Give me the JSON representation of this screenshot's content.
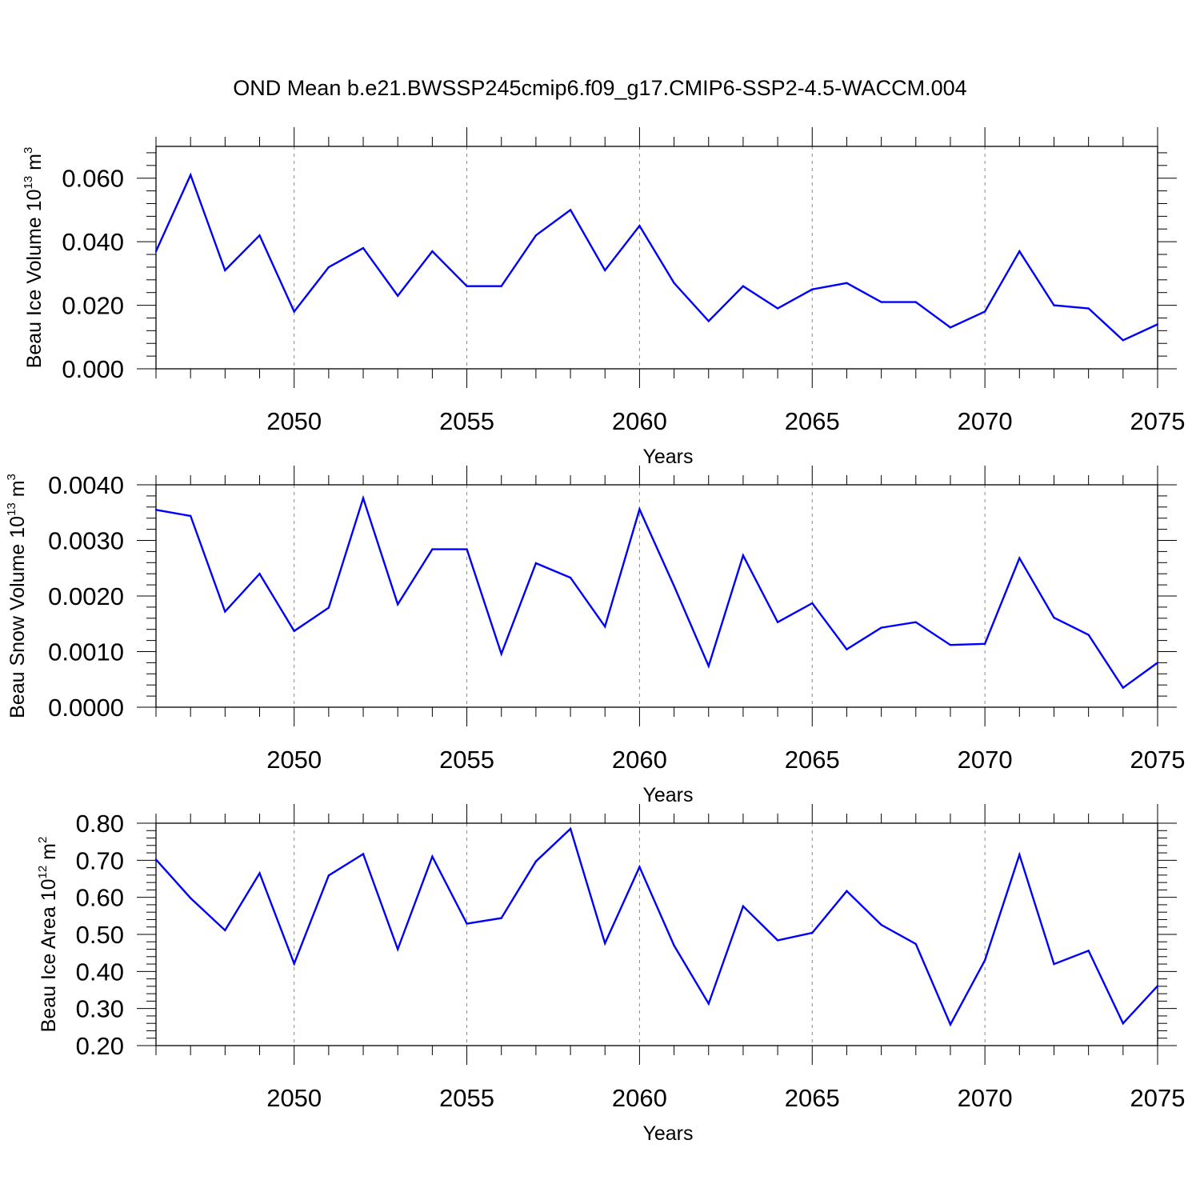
{
  "title": "OND Mean b.e21.BWSSP245cmip6.f09_g17.CMIP6-SSP2-4.5-WACCM.004",
  "colors": {
    "line": "#0000ff",
    "axis": "#000000",
    "grid": "#888888"
  },
  "chart_data": [
    {
      "type": "line",
      "ylabel": {
        "text": "Beau Ice Volume 10",
        "exp": "13",
        "unit": " m",
        "unit_exp": "3"
      },
      "xlabel": "Years",
      "xlim": [
        2046,
        2075
      ],
      "ylim": [
        0.0,
        0.07
      ],
      "yticks": [
        0.0,
        0.02,
        0.04,
        0.06
      ],
      "ytick_labels": [
        "0.000",
        "0.020",
        "0.040",
        "0.060"
      ],
      "xticks": [
        2050,
        2055,
        2060,
        2065,
        2070,
        2075
      ],
      "xtick_labels": [
        "2050",
        "2055",
        "2060",
        "2065",
        "2070",
        "2075"
      ],
      "grid": "vertical dashed at major x ticks",
      "x": [
        2046,
        2047,
        2048,
        2049,
        2050,
        2051,
        2052,
        2053,
        2054,
        2055,
        2056,
        2057,
        2058,
        2059,
        2060,
        2061,
        2062,
        2063,
        2064,
        2065,
        2066,
        2067,
        2068,
        2069,
        2070,
        2071,
        2072,
        2073,
        2074,
        2075
      ],
      "values": [
        0.037,
        0.061,
        0.031,
        0.042,
        0.018,
        0.032,
        0.038,
        0.023,
        0.037,
        0.026,
        0.026,
        0.042,
        0.05,
        0.031,
        0.045,
        0.027,
        0.015,
        0.026,
        0.019,
        0.025,
        0.027,
        0.021,
        0.021,
        0.013,
        0.018,
        0.037,
        0.02,
        0.019,
        0.009,
        0.014
      ]
    },
    {
      "type": "line",
      "ylabel": {
        "text": "Beau Snow Volume 10",
        "exp": "13",
        "unit": " m",
        "unit_exp": "3"
      },
      "xlabel": "Years",
      "xlim": [
        2046,
        2075
      ],
      "ylim": [
        0.0,
        0.004
      ],
      "yticks": [
        0.0,
        0.001,
        0.002,
        0.003,
        0.004
      ],
      "ytick_labels": [
        "0.0000",
        "0.0010",
        "0.0020",
        "0.0030",
        "0.0040"
      ],
      "xticks": [
        2050,
        2055,
        2060,
        2065,
        2070,
        2075
      ],
      "xtick_labels": [
        "2050",
        "2055",
        "2060",
        "2065",
        "2070",
        "2075"
      ],
      "grid": "vertical dashed at major x ticks",
      "x": [
        2046,
        2047,
        2048,
        2049,
        2050,
        2051,
        2052,
        2053,
        2054,
        2055,
        2056,
        2057,
        2058,
        2059,
        2060,
        2061,
        2062,
        2063,
        2064,
        2065,
        2066,
        2067,
        2068,
        2069,
        2070,
        2071,
        2072,
        2073,
        2074,
        2075
      ],
      "values": [
        0.00355,
        0.00344,
        0.00172,
        0.0024,
        0.00137,
        0.00179,
        0.00376,
        0.00185,
        0.00284,
        0.00284,
        0.00096,
        0.00259,
        0.00233,
        0.00145,
        0.00356,
        0.00218,
        0.00074,
        0.00273,
        0.00153,
        0.00187,
        0.00104,
        0.00143,
        0.00153,
        0.00112,
        0.00114,
        0.00268,
        0.00161,
        0.0013,
        0.00035,
        0.0008
      ]
    },
    {
      "type": "line",
      "ylabel": {
        "text": "Beau Ice Area 10",
        "exp": "12",
        "unit": " m",
        "unit_exp": "2"
      },
      "xlabel": "Years",
      "xlim": [
        2046,
        2075
      ],
      "ylim": [
        0.2,
        0.8
      ],
      "yticks": [
        0.2,
        0.3,
        0.4,
        0.5,
        0.6,
        0.7,
        0.8
      ],
      "ytick_labels": [
        "0.20",
        "0.30",
        "0.40",
        "0.50",
        "0.60",
        "0.70",
        "0.80"
      ],
      "xticks": [
        2050,
        2055,
        2060,
        2065,
        2070,
        2075
      ],
      "xtick_labels": [
        "2050",
        "2055",
        "2060",
        "2065",
        "2070",
        "2075"
      ],
      "grid": "vertical dashed at major x ticks",
      "x": [
        2046,
        2047,
        2048,
        2049,
        2050,
        2051,
        2052,
        2053,
        2054,
        2055,
        2056,
        2057,
        2058,
        2059,
        2060,
        2061,
        2062,
        2063,
        2064,
        2065,
        2066,
        2067,
        2068,
        2069,
        2070,
        2071,
        2072,
        2073,
        2074,
        2075
      ],
      "values": [
        0.702,
        0.598,
        0.511,
        0.665,
        0.421,
        0.659,
        0.717,
        0.46,
        0.71,
        0.529,
        0.544,
        0.697,
        0.785,
        0.476,
        0.682,
        0.47,
        0.313,
        0.576,
        0.484,
        0.504,
        0.617,
        0.526,
        0.474,
        0.257,
        0.43,
        0.715,
        0.42,
        0.456,
        0.26,
        0.361
      ]
    }
  ]
}
